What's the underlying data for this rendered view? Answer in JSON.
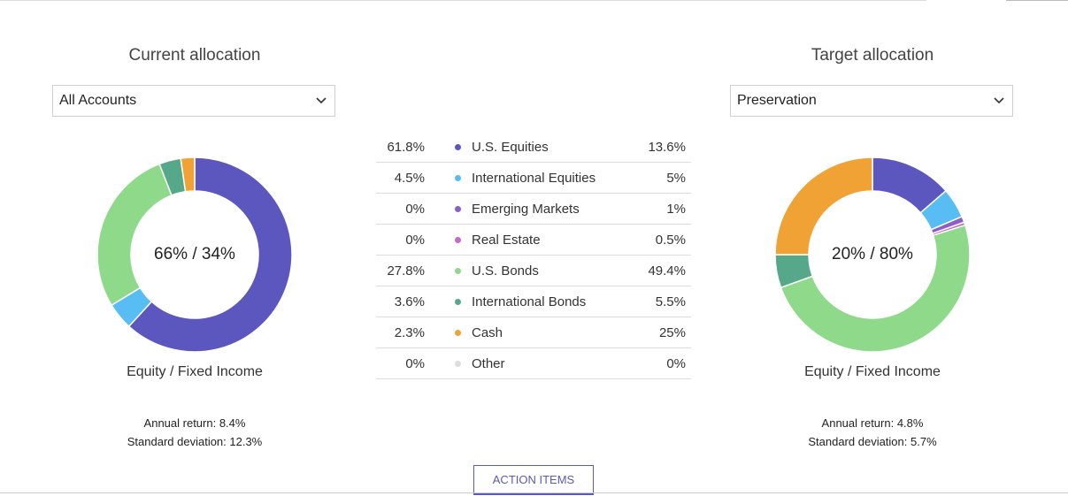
{
  "colors": {
    "us_equities": "#5b57bf",
    "international_equities": "#58bdf2",
    "emerging_markets": "#8b5fc7",
    "real_estate": "#c46bc9",
    "us_bonds": "#8fd98a",
    "international_bonds": "#55a88a",
    "cash": "#f0a235",
    "other": "#dddddd"
  },
  "current": {
    "title": "Current allocation",
    "select_value": "All Accounts",
    "center_label": "66% / 34%",
    "sub_label": "Equity / Fixed Income",
    "annual_return": "Annual return: 8.4%",
    "std_dev": "Standard deviation: 12.3%"
  },
  "target": {
    "title": "Target allocation",
    "select_value": "Preservation",
    "center_label": "20% / 80%",
    "sub_label": "Equity / Fixed Income",
    "annual_return": "Annual return: 4.8%",
    "std_dev": "Standard deviation: 5.7%"
  },
  "legend": [
    {
      "name": "U.S. Equities",
      "current": "61.8%",
      "target": "13.6%",
      "current_value": 61.8,
      "target_value": 13.6,
      "color_key": "us_equities"
    },
    {
      "name": "International Equities",
      "current": "4.5%",
      "target": "5%",
      "current_value": 4.5,
      "target_value": 5,
      "color_key": "international_equities"
    },
    {
      "name": "Emerging Markets",
      "current": "0%",
      "target": "1%",
      "current_value": 0,
      "target_value": 1,
      "color_key": "emerging_markets"
    },
    {
      "name": "Real Estate",
      "current": "0%",
      "target": "0.5%",
      "current_value": 0,
      "target_value": 0.5,
      "color_key": "real_estate"
    },
    {
      "name": "U.S. Bonds",
      "current": "27.8%",
      "target": "49.4%",
      "current_value": 27.8,
      "target_value": 49.4,
      "color_key": "us_bonds"
    },
    {
      "name": "International Bonds",
      "current": "3.6%",
      "target": "5.5%",
      "current_value": 3.6,
      "target_value": 5.5,
      "color_key": "international_bonds"
    },
    {
      "name": "Cash",
      "current": "2.3%",
      "target": "25%",
      "current_value": 2.3,
      "target_value": 25,
      "color_key": "cash"
    },
    {
      "name": "Other",
      "current": "0%",
      "target": "0%",
      "current_value": 0,
      "target_value": 0,
      "color_key": "other"
    }
  ],
  "action_button_label": "ACTION ITEMS",
  "icons": {
    "dropdown": "chevron-down-icon"
  }
}
